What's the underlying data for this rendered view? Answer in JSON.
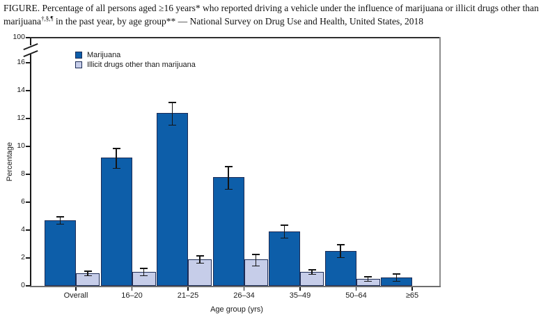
{
  "title": {
    "part1": "FIGURE. Percentage of all persons aged ≥16 years* who reported driving a vehicle under the influence of marijuana or illicit drugs other than marijuana",
    "sup": "†,§,¶",
    "part2": " in the past year, by age group** — National Survey on Drug Use and Health, United States, 2018"
  },
  "chart_data": {
    "type": "bar",
    "title": "Percentage of all persons aged ≥16 years who reported driving a vehicle under the influence of marijuana or illicit drugs other than marijuana in the past year, by age group — National Survey on Drug Use and Health, United States, 2018",
    "categories": [
      "Overall",
      "16–20",
      "21–25",
      "26–34",
      "35–49",
      "50–64",
      "≥65"
    ],
    "series": [
      {
        "name": "Marijuana",
        "color": "#0d5ea9",
        "values": [
          4.7,
          9.2,
          12.4,
          7.8,
          3.9,
          2.5,
          0.6
        ],
        "ci_low": [
          4.4,
          8.4,
          11.5,
          6.9,
          3.4,
          2.0,
          0.3
        ],
        "ci_high": [
          5.0,
          9.9,
          13.2,
          8.6,
          4.4,
          3.0,
          0.9
        ]
      },
      {
        "name": "Illicit drugs other than marijuana",
        "color": "#c6cde9",
        "values": [
          0.9,
          1.0,
          1.9,
          1.9,
          1.0,
          0.5,
          null
        ],
        "ci_low": [
          0.7,
          0.7,
          1.6,
          1.4,
          0.8,
          0.3,
          null
        ],
        "ci_high": [
          1.1,
          1.3,
          2.2,
          2.3,
          1.2,
          0.7,
          null
        ]
      }
    ],
    "xlabel": "Age group (yrs)",
    "ylabel": "Percentage",
    "y_ticks": [
      0,
      2,
      4,
      6,
      8,
      10,
      12,
      14,
      16
    ],
    "y_break_top_label": "100",
    "axis_break": true,
    "ylim_shown": [
      0,
      16
    ],
    "grid": false,
    "legend_position": "top-left-inside",
    "error_bars": true
  }
}
